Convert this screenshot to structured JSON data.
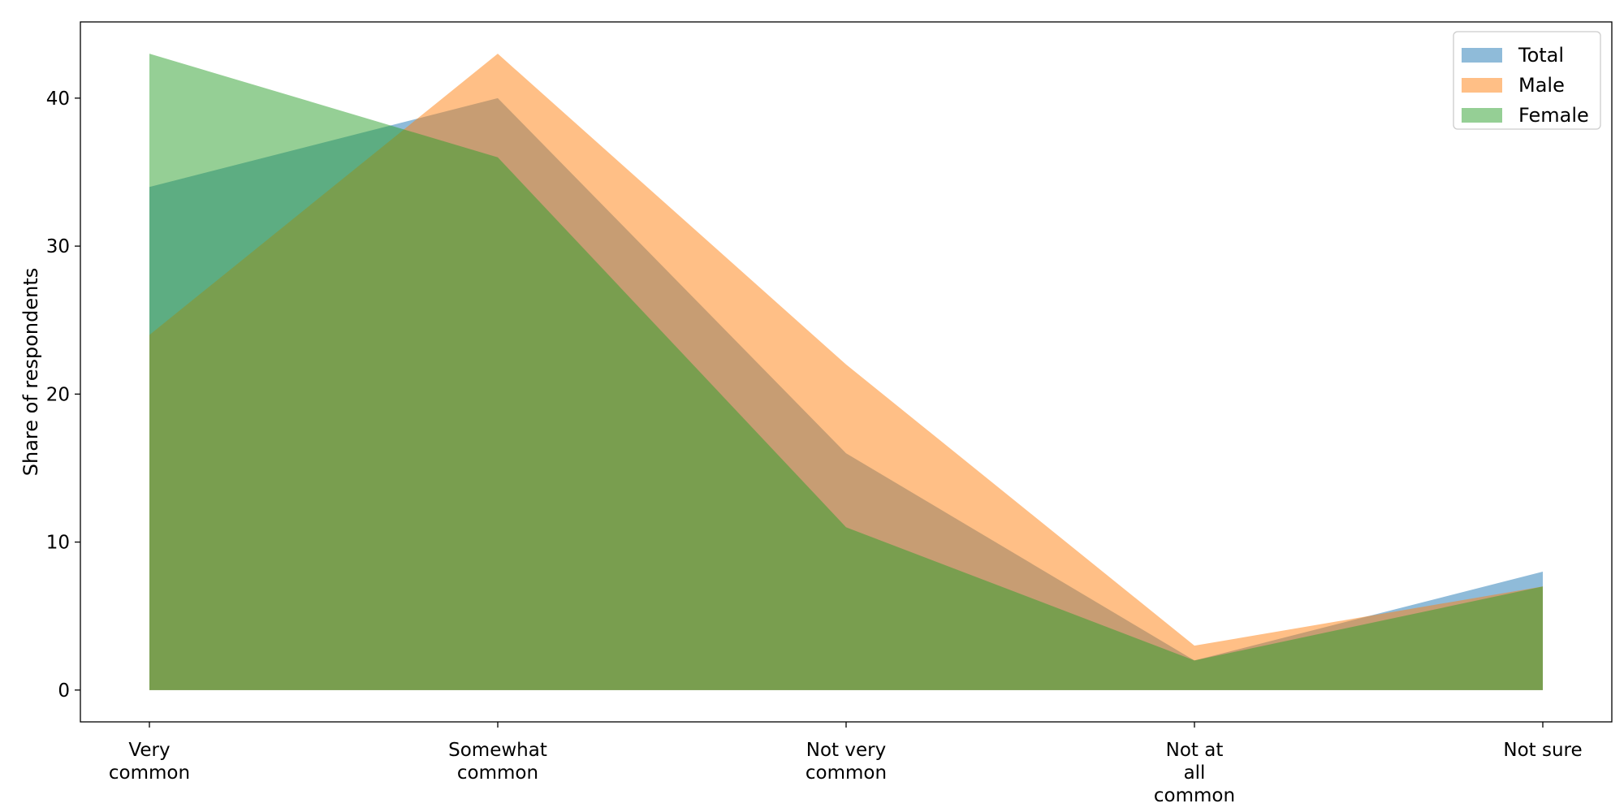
{
  "chart_data": {
    "type": "area",
    "categories": [
      [
        "Very",
        "common"
      ],
      [
        "Somewhat",
        "common"
      ],
      [
        "Not very",
        "common"
      ],
      [
        "Not at",
        "all",
        "common"
      ],
      [
        "Not sure"
      ]
    ],
    "series": [
      {
        "name": "Total",
        "values": [
          34,
          40,
          16,
          2,
          8
        ],
        "color": "#1f77b4"
      },
      {
        "name": "Male",
        "values": [
          24,
          43,
          22,
          3,
          7
        ],
        "color": "#ff7f0e"
      },
      {
        "name": "Female",
        "values": [
          43,
          36,
          11,
          2,
          7
        ],
        "color": "#2ca02c"
      }
    ],
    "fill_opacity": 0.5,
    "title": "",
    "xlabel": "",
    "ylabel": "Share of respondents",
    "ylim": [
      -2.15,
      45.15
    ],
    "yticks": [
      0,
      10,
      20,
      30,
      40
    ],
    "grid": false,
    "legend_position": "top-right"
  }
}
